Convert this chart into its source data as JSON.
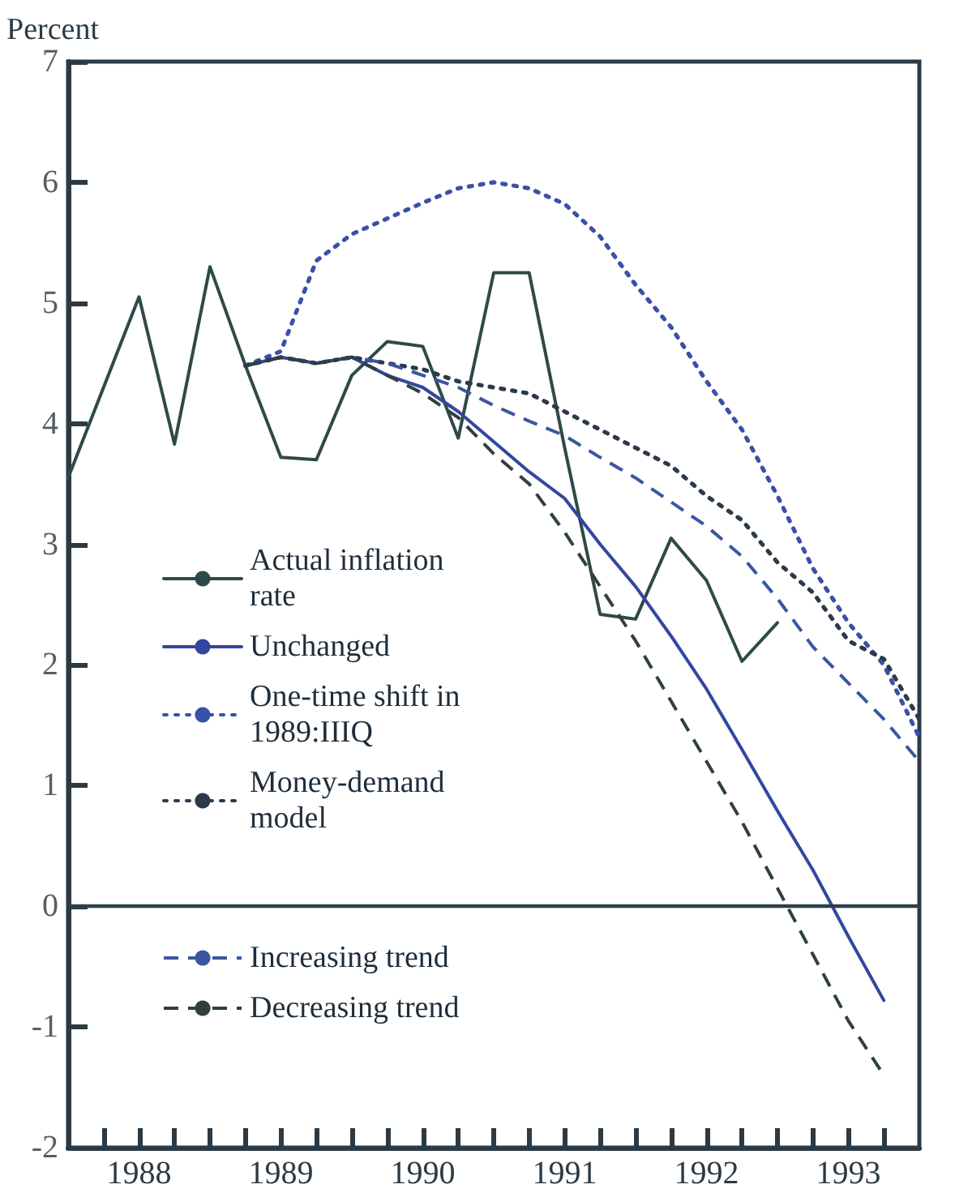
{
  "chart_data": {
    "type": "line",
    "ylabel": "Percent",
    "xlim": [
      1988,
      1994
    ],
    "ylim": [
      -2,
      7
    ],
    "yticks": [
      -2,
      -1,
      0,
      1,
      2,
      3,
      4,
      5,
      6,
      7
    ],
    "xticks": [
      {
        "value": 1988.25,
        "label": null
      },
      {
        "value": 1988.5,
        "label": "1988"
      },
      {
        "value": 1988.75,
        "label": null
      },
      {
        "value": 1989,
        "label": null
      },
      {
        "value": 1989.25,
        "label": null
      },
      {
        "value": 1989.5,
        "label": "1989"
      },
      {
        "value": 1989.75,
        "label": null
      },
      {
        "value": 1990,
        "label": null
      },
      {
        "value": 1990.25,
        "label": null
      },
      {
        "value": 1990.5,
        "label": "1990"
      },
      {
        "value": 1990.75,
        "label": null
      },
      {
        "value": 1991,
        "label": null
      },
      {
        "value": 1991.25,
        "label": null
      },
      {
        "value": 1991.5,
        "label": "1991"
      },
      {
        "value": 1991.75,
        "label": null
      },
      {
        "value": 1992,
        "label": null
      },
      {
        "value": 1992.25,
        "label": null
      },
      {
        "value": 1992.5,
        "label": "1992"
      },
      {
        "value": 1992.75,
        "label": null
      },
      {
        "value": 1993,
        "label": null
      },
      {
        "value": 1993.25,
        "label": null
      },
      {
        "value": 1993.5,
        "label": "1993"
      },
      {
        "value": 1993.75,
        "label": null
      }
    ],
    "grid": false,
    "legend": "left",
    "marker": "none",
    "ref_lines": [
      {
        "axis": "y",
        "value": 0,
        "label": null,
        "color": "#2b3f4a",
        "line_style": "solid"
      }
    ],
    "series": [
      {
        "name": "Actual inflation rate",
        "color": "#2e4a48",
        "line_style": "solid",
        "x": [
          1988,
          1988.25,
          1988.5,
          1988.75,
          1989,
          1989.25,
          1989.5,
          1989.75,
          1990,
          1990.25,
          1990.5,
          1990.75,
          1991,
          1991.25,
          1991.5,
          1991.75,
          1992,
          1992.25,
          1992.5,
          1992.75,
          1993
        ],
        "values": [
          3.55,
          4.3,
          5.05,
          3.83,
          5.3,
          4.48,
          3.72,
          3.7,
          4.4,
          4.68,
          4.64,
          3.88,
          5.25,
          5.25,
          3.8,
          2.42,
          2.38,
          3.05,
          2.7,
          2.03,
          2.35
        ]
      },
      {
        "name": "Unchanged",
        "color": "#3346a0",
        "line_style": "solid",
        "x": [
          1989.25,
          1989.5,
          1989.75,
          1990,
          1990.25,
          1990.5,
          1990.75,
          1991,
          1991.25,
          1991.5,
          1991.75,
          1992,
          1992.25,
          1992.5,
          1992.75,
          1993,
          1993.25,
          1993.5,
          1993.75
        ],
        "values": [
          4.48,
          4.55,
          4.5,
          4.55,
          4.4,
          4.3,
          4.1,
          3.85,
          3.6,
          3.38,
          3.0,
          2.65,
          2.24,
          1.8,
          1.3,
          0.79,
          0.3,
          -0.25,
          -0.78
        ]
      },
      {
        "name": "One-time shift in 1989:IIIQ",
        "color": "#3a50a8",
        "line_style": "dotted",
        "x": [
          1989.25,
          1989.5,
          1989.75,
          1990,
          1990.25,
          1990.5,
          1990.75,
          1991,
          1991.25,
          1991.5,
          1991.75,
          1992,
          1992.25,
          1992.5,
          1992.75,
          1993,
          1993.25,
          1993.5,
          1993.75,
          1994
        ],
        "values": [
          4.48,
          4.6,
          5.35,
          5.57,
          5.7,
          5.83,
          5.95,
          6.0,
          5.95,
          5.82,
          5.55,
          5.15,
          4.8,
          4.35,
          3.95,
          3.4,
          2.8,
          2.35,
          2.0,
          1.4
        ]
      },
      {
        "name": "Money-demand model",
        "color": "#2b3a4a",
        "line_style": "dotted",
        "x": [
          1989.25,
          1989.5,
          1989.75,
          1990,
          1990.25,
          1990.5,
          1990.75,
          1991,
          1991.25,
          1991.5,
          1991.75,
          1992,
          1992.25,
          1992.5,
          1992.75,
          1993,
          1993.25,
          1993.5,
          1993.75,
          1994
        ],
        "values": [
          4.48,
          4.55,
          4.5,
          4.55,
          4.5,
          4.45,
          4.35,
          4.3,
          4.25,
          4.1,
          3.95,
          3.8,
          3.65,
          3.4,
          3.2,
          2.85,
          2.6,
          2.2,
          2.05,
          1.55
        ]
      },
      {
        "name": "Increasing trend",
        "color": "#3b55a0",
        "line_style": "dashed",
        "x": [
          1989.25,
          1989.5,
          1989.75,
          1990,
          1990.25,
          1990.5,
          1990.75,
          1991,
          1991.25,
          1991.5,
          1991.75,
          1992,
          1992.25,
          1992.5,
          1992.75,
          1993,
          1993.25,
          1993.5,
          1993.75,
          1994
        ],
        "values": [
          4.48,
          4.55,
          4.5,
          4.55,
          4.5,
          4.4,
          4.3,
          4.15,
          4.02,
          3.9,
          3.72,
          3.55,
          3.35,
          3.15,
          2.9,
          2.55,
          2.15,
          1.85,
          1.55,
          1.2
        ]
      },
      {
        "name": "Decreasing trend",
        "color": "#2f4040",
        "line_style": "dashed",
        "x": [
          1989.25,
          1989.5,
          1989.75,
          1990,
          1990.25,
          1990.5,
          1990.75,
          1991,
          1991.25,
          1991.5,
          1991.75,
          1992,
          1992.25,
          1992.5,
          1992.75,
          1993,
          1993.25,
          1993.5,
          1993.75
        ],
        "values": [
          4.48,
          4.55,
          4.5,
          4.55,
          4.4,
          4.25,
          4.05,
          3.75,
          3.5,
          3.1,
          2.65,
          2.2,
          1.7,
          1.2,
          0.7,
          0.15,
          -0.4,
          -0.95,
          -1.4
        ]
      }
    ]
  }
}
